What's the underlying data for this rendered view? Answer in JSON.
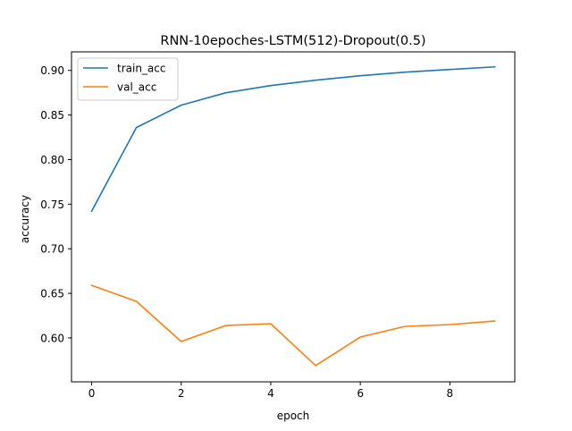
{
  "chart_data": {
    "type": "line",
    "title": "RNN-10epoches-LSTM(512)-Dropout(0.5)",
    "xlabel": "epoch",
    "ylabel": "accuracy",
    "x": [
      0,
      1,
      2,
      3,
      4,
      5,
      6,
      7,
      8,
      9
    ],
    "xlim": [
      -0.45,
      9.45
    ],
    "ylim": [
      0.5508,
      0.9208
    ],
    "xticks": [
      0,
      2,
      4,
      6,
      8
    ],
    "yticks": [
      0.6,
      0.65,
      0.7,
      0.75,
      0.8,
      0.85,
      0.9
    ],
    "ytick_labels": [
      "0.60",
      "0.65",
      "0.70",
      "0.75",
      "0.80",
      "0.85",
      "0.90"
    ],
    "grid": false,
    "legend_position": "top-left",
    "series": [
      {
        "name": "train_acc",
        "color": "#1f77b4",
        "values": [
          0.742,
          0.836,
          0.861,
          0.875,
          0.883,
          0.889,
          0.894,
          0.898,
          0.901,
          0.904
        ]
      },
      {
        "name": "val_acc",
        "color": "#ff7f0e",
        "values": [
          0.659,
          0.641,
          0.596,
          0.614,
          0.616,
          0.569,
          0.601,
          0.613,
          0.615,
          0.619
        ]
      }
    ]
  }
}
